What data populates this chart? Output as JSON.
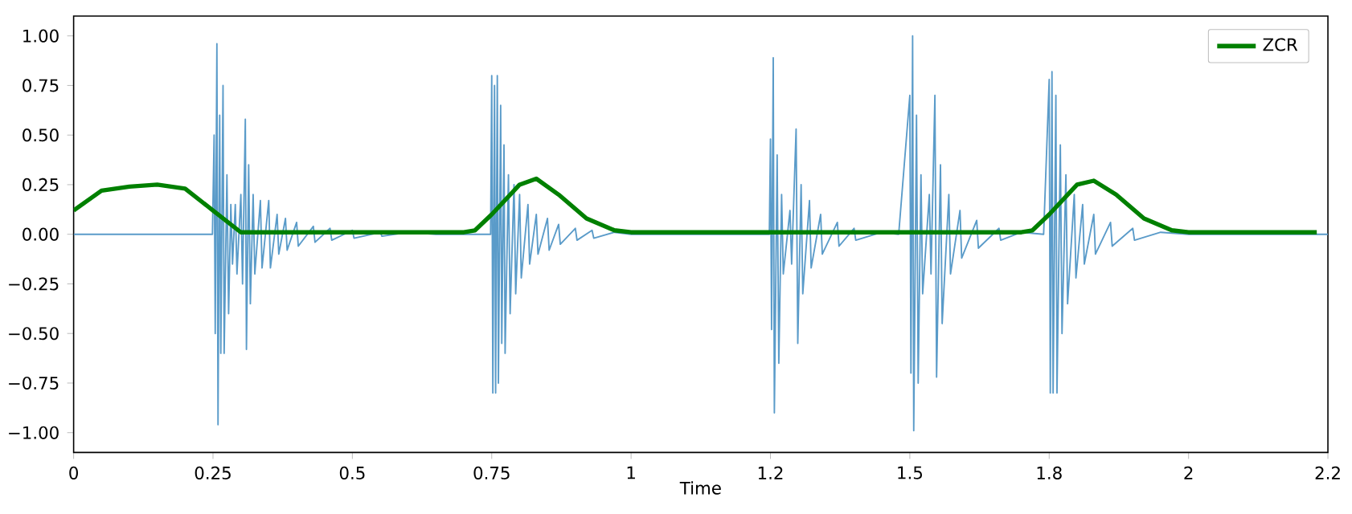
{
  "chart_data": {
    "type": "line",
    "xlabel": "Time",
    "xlim": [
      0,
      2.25
    ],
    "ylim": [
      -1.1,
      1.1
    ],
    "xticks": [
      0,
      0.25,
      0.5,
      0.75,
      1,
      {
        "value": 1.25,
        "label": "1.2"
      },
      1.5,
      {
        "value": 1.75,
        "label": "1.8"
      },
      2,
      {
        "value": 2.25,
        "label": "2.2"
      }
    ],
    "yticks": [
      {
        "value": -1,
        "label": "−1.00"
      },
      {
        "value": -0.75,
        "label": "−0.75"
      },
      {
        "value": -0.5,
        "label": "−0.50"
      },
      {
        "value": -0.25,
        "label": "−0.25"
      },
      {
        "value": 0,
        "label": "0.00"
      },
      {
        "value": 0.25,
        "label": "0.25"
      },
      {
        "value": 0.5,
        "label": "0.50"
      },
      {
        "value": 0.75,
        "label": "0.75"
      },
      {
        "value": 1,
        "label": "1.00"
      }
    ],
    "legend": "top right",
    "series": [
      {
        "color": "#5a9bc9",
        "x": [
          0,
          0.249,
          0.252,
          0.254,
          0.257,
          0.259,
          0.262,
          0.264,
          0.268,
          0.27,
          0.275,
          0.278,
          0.282,
          0.285,
          0.29,
          0.293,
          0.3,
          0.303,
          0.308,
          0.31,
          0.314,
          0.317,
          0.322,
          0.325,
          0.335,
          0.338,
          0.35,
          0.353,
          0.365,
          0.368,
          0.38,
          0.383,
          0.4,
          0.403,
          0.43,
          0.433,
          0.46,
          0.463,
          0.5,
          0.503,
          0.55,
          0.553,
          0.6,
          0.65,
          0.748,
          0.75,
          0.752,
          0.755,
          0.757,
          0.76,
          0.762,
          0.766,
          0.768,
          0.772,
          0.774,
          0.78,
          0.783,
          0.79,
          0.793,
          0.8,
          0.803,
          0.815,
          0.818,
          0.83,
          0.833,
          0.85,
          0.853,
          0.87,
          0.873,
          0.9,
          0.903,
          0.93,
          0.933,
          0.97,
          1.0,
          1.248,
          1.25,
          1.252,
          1.255,
          1.257,
          1.262,
          1.265,
          1.27,
          1.273,
          1.285,
          1.288,
          1.296,
          1.299,
          1.305,
          1.308,
          1.32,
          1.323,
          1.34,
          1.343,
          1.37,
          1.373,
          1.4,
          1.403,
          1.45,
          1.48,
          1.5,
          1.502,
          1.505,
          1.507,
          1.512,
          1.515,
          1.52,
          1.523,
          1.535,
          1.538,
          1.545,
          1.548,
          1.555,
          1.558,
          1.57,
          1.573,
          1.59,
          1.593,
          1.62,
          1.623,
          1.66,
          1.663,
          1.7,
          1.74,
          1.75,
          1.752,
          1.755,
          1.757,
          1.762,
          1.764,
          1.77,
          1.773,
          1.78,
          1.783,
          1.795,
          1.798,
          1.81,
          1.813,
          1.83,
          1.833,
          1.86,
          1.863,
          1.9,
          1.903,
          1.95,
          2.0,
          2.25
        ],
        "values": [
          0,
          0,
          0.5,
          -0.5,
          0.96,
          -0.96,
          0.6,
          -0.6,
          0.75,
          -0.6,
          0.3,
          -0.4,
          0.15,
          -0.15,
          0.15,
          -0.2,
          0.2,
          -0.25,
          0.58,
          -0.58,
          0.35,
          -0.35,
          0.2,
          -0.2,
          0.17,
          -0.17,
          0.17,
          -0.17,
          0.1,
          -0.1,
          0.08,
          -0.08,
          0.06,
          -0.06,
          0.04,
          -0.04,
          0.03,
          -0.03,
          0.02,
          -0.02,
          0.01,
          -0.01,
          0.01,
          0,
          0,
          0.8,
          -0.8,
          0.75,
          -0.8,
          0.8,
          -0.75,
          0.65,
          -0.55,
          0.45,
          -0.6,
          0.3,
          -0.4,
          0.25,
          -0.3,
          0.2,
          -0.22,
          0.15,
          -0.15,
          0.1,
          -0.1,
          0.08,
          -0.08,
          0.05,
          -0.05,
          0.03,
          -0.03,
          0.02,
          -0.02,
          0.01,
          0,
          0,
          0.48,
          -0.48,
          0.89,
          -0.9,
          0.4,
          -0.65,
          0.2,
          -0.2,
          0.12,
          -0.15,
          0.53,
          -0.55,
          0.25,
          -0.3,
          0.17,
          -0.17,
          0.1,
          -0.1,
          0.06,
          -0.06,
          0.03,
          -0.03,
          0.01,
          0,
          0.7,
          -0.7,
          1.0,
          -0.99,
          0.6,
          -0.75,
          0.3,
          -0.3,
          0.2,
          -0.2,
          0.7,
          -0.72,
          0.35,
          -0.45,
          0.2,
          -0.2,
          0.12,
          -0.12,
          0.07,
          -0.07,
          0.03,
          -0.03,
          0.01,
          0,
          0.78,
          -0.8,
          0.82,
          -0.8,
          0.7,
          -0.8,
          0.45,
          -0.5,
          0.3,
          -0.35,
          0.2,
          -0.22,
          0.15,
          -0.15,
          0.1,
          -0.1,
          0.06,
          -0.06,
          0.03,
          -0.03,
          0.01,
          0,
          0
        ]
      },
      {
        "name": "ZCR",
        "color": "#008000",
        "x": [
          0,
          0.05,
          0.1,
          0.15,
          0.2,
          0.25,
          0.3,
          0.7,
          0.72,
          0.75,
          0.8,
          0.83,
          0.87,
          0.92,
          0.97,
          1.0,
          1.7,
          1.72,
          1.75,
          1.8,
          1.83,
          1.87,
          1.92,
          1.97,
          2.0,
          2.23
        ],
        "values": [
          0.12,
          0.22,
          0.24,
          0.25,
          0.23,
          0.12,
          0.01,
          0.01,
          0.02,
          0.1,
          0.25,
          0.28,
          0.2,
          0.08,
          0.02,
          0.01,
          0.01,
          0.02,
          0.1,
          0.25,
          0.27,
          0.2,
          0.08,
          0.02,
          0.01,
          0.01
        ]
      }
    ]
  }
}
